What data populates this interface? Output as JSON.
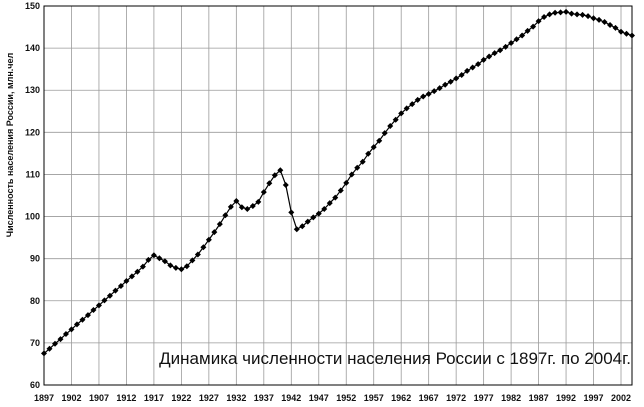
{
  "chart_data": {
    "type": "line",
    "title": "Динамика численности населения России с 1897г. по 2004г.",
    "xlabel": "",
    "ylabel": "Численность населения России, млн.чел",
    "xlim": [
      1897,
      2004
    ],
    "ylim": [
      60,
      150
    ],
    "grid": true,
    "x_ticks": [
      "1897",
      "1902",
      "1907",
      "1912",
      "1917",
      "1922",
      "1927",
      "1932",
      "1937",
      "1942",
      "1947",
      "1952",
      "1957",
      "1962",
      "1967",
      "1972",
      "1977",
      "1982",
      "1987",
      "1992",
      "1997",
      "2002"
    ],
    "y_ticks": [
      "60",
      "70",
      "80",
      "90",
      "100",
      "110",
      "120",
      "130",
      "140",
      "150"
    ],
    "series": [
      {
        "name": "",
        "color": "#000000",
        "marker": "diamond",
        "x": [
          1897,
          1898,
          1899,
          1900,
          1901,
          1902,
          1903,
          1904,
          1905,
          1906,
          1907,
          1908,
          1909,
          1910,
          1911,
          1912,
          1913,
          1914,
          1915,
          1916,
          1917,
          1918,
          1919,
          1920,
          1921,
          1922,
          1923,
          1924,
          1925,
          1926,
          1927,
          1928,
          1929,
          1930,
          1931,
          1932,
          1933,
          1934,
          1935,
          1936,
          1937,
          1938,
          1939,
          1940,
          1941,
          1942,
          1943,
          1944,
          1945,
          1946,
          1947,
          1948,
          1949,
          1950,
          1951,
          1952,
          1953,
          1954,
          1955,
          1956,
          1957,
          1958,
          1959,
          1960,
          1961,
          1962,
          1963,
          1964,
          1965,
          1966,
          1967,
          1968,
          1969,
          1970,
          1971,
          1972,
          1973,
          1974,
          1975,
          1976,
          1977,
          1978,
          1979,
          1980,
          1981,
          1982,
          1983,
          1984,
          1985,
          1986,
          1987,
          1988,
          1989,
          1990,
          1991,
          1992,
          1993,
          1994,
          1995,
          1996,
          1997,
          1998,
          1999,
          2000,
          2001,
          2002,
          2003,
          2004
        ],
        "y": [
          67.5,
          68.6,
          69.8,
          70.9,
          72.1,
          73.2,
          74.4,
          75.5,
          76.6,
          77.8,
          78.9,
          80.1,
          81.2,
          82.4,
          83.5,
          84.7,
          85.8,
          86.9,
          88.1,
          89.7,
          90.8,
          90.1,
          89.4,
          88.4,
          87.8,
          87.5,
          88.2,
          89.6,
          91.0,
          92.7,
          94.5,
          96.3,
          98.2,
          100.3,
          102.3,
          103.7,
          102.2,
          101.8,
          102.5,
          103.5,
          105.8,
          107.9,
          109.8,
          111.0,
          107.5,
          101.0,
          97.0,
          97.7,
          98.8,
          99.8,
          100.7,
          101.8,
          103.2,
          104.5,
          106.2,
          108.0,
          110.0,
          111.6,
          113.0,
          114.9,
          116.5,
          118.0,
          119.8,
          121.5,
          123.0,
          124.5,
          125.7,
          126.7,
          127.7,
          128.5,
          129.1,
          129.8,
          130.5,
          131.3,
          132.0,
          132.8,
          133.6,
          134.6,
          135.4,
          136.2,
          137.2,
          138.0,
          138.8,
          139.5,
          140.3,
          141.2,
          142.1,
          143.0,
          144.1,
          145.1,
          146.4,
          147.4,
          148.0,
          148.4,
          148.5,
          148.6,
          148.2,
          148.0,
          147.9,
          147.6,
          147.1,
          146.7,
          146.2,
          145.5,
          144.8,
          143.9,
          143.4,
          143.0
        ]
      }
    ]
  }
}
